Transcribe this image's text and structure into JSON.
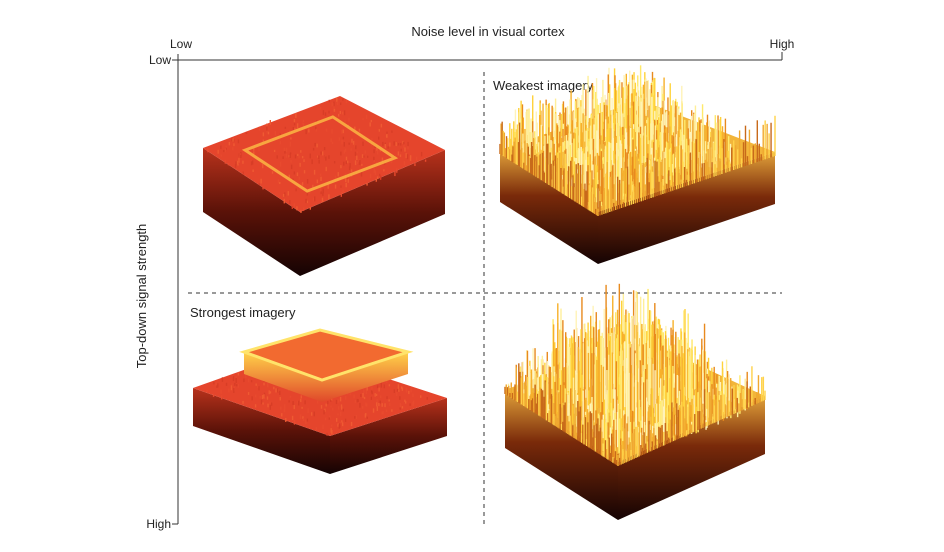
{
  "axes": {
    "x_title": "Noise level in visual cortex",
    "x_low": "Low",
    "x_high": "High",
    "y_title": "Top-down signal strength",
    "y_low": "Low",
    "y_high": "High"
  },
  "panels": [
    {
      "label": "Weakest imagery"
    },
    {
      "label": "Strongest imagery"
    }
  ]
}
